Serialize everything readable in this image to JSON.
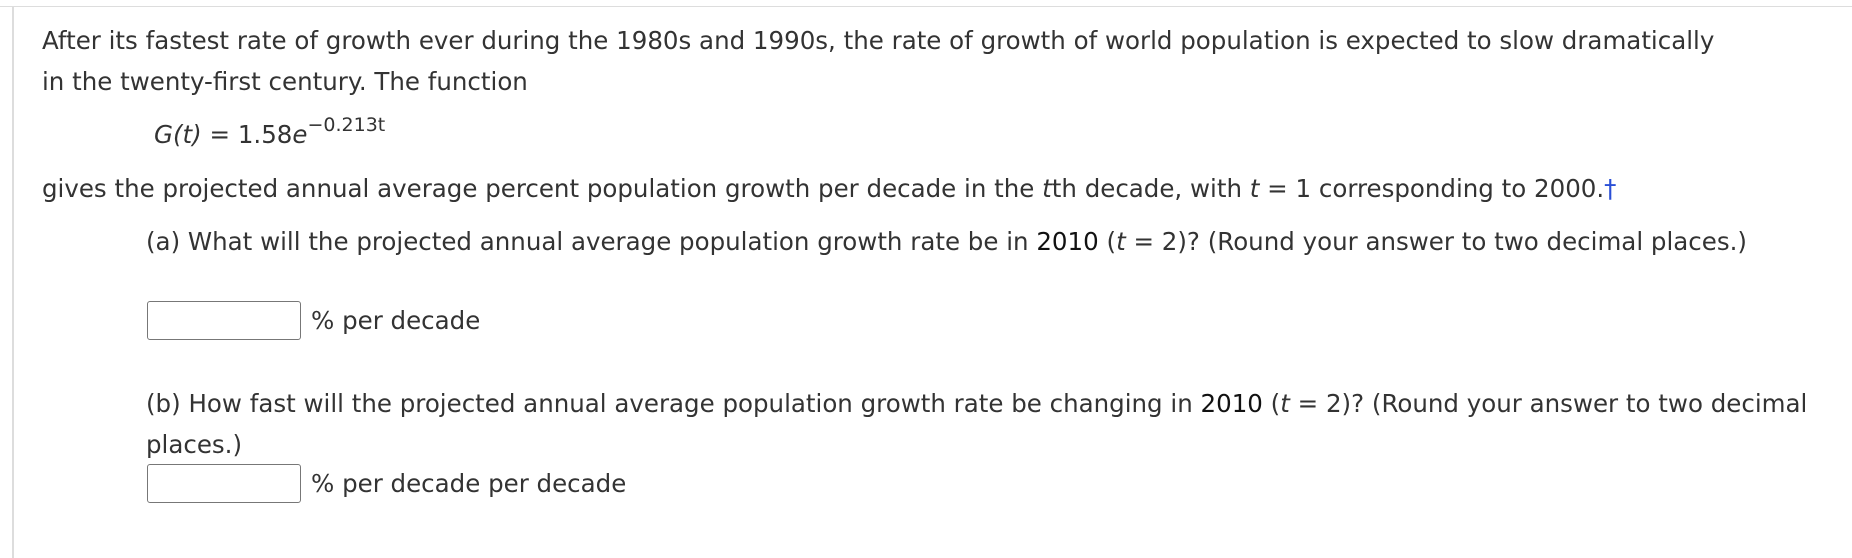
{
  "intro": "After its fastest rate of growth ever during the 1980s and 1990s, the rate of growth of world population is expected to slow dramatically in the twenty-first century. The function",
  "formula": {
    "lhs": "G(t)",
    "equals": "=",
    "coefficient": "1.58",
    "base": "e",
    "exponent": "−0.213t"
  },
  "sentence": [
    "gives the projected annual average percent population growth per decade in the ",
    "t",
    "th decade, with ",
    "t",
    " = 1 corresponding to 2000."
  ],
  "footnote_marker": "†",
  "parts": [
    {
      "question": [
        "(a) What will the projected annual average population growth rate be in ",
        "2010",
        " (",
        "t",
        " = 2)? (Round your answer to two decimal places.)"
      ],
      "unit": "% per decade"
    },
    {
      "question": [
        "(b) How fast will the projected annual average population growth rate be changing in ",
        "2010",
        " (",
        "t",
        " = 2)? (Round your answer to two decimal places.)"
      ],
      "unit": "% per decade per decade"
    }
  ]
}
